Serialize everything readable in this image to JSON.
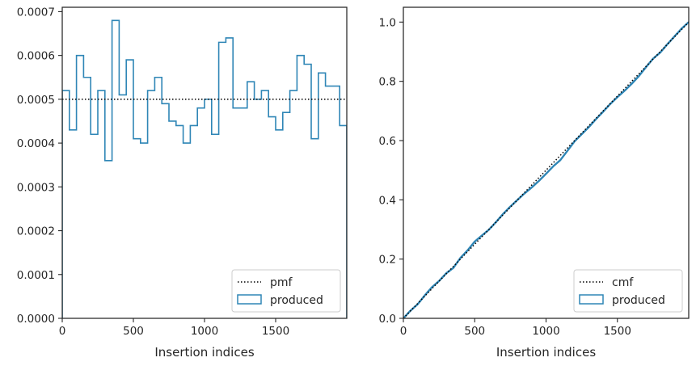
{
  "chart_data": [
    {
      "type": "histogram-step",
      "xlabel": "Insertion indices",
      "ylabel": "",
      "xlim": [
        0,
        2000
      ],
      "ylim": [
        0,
        0.00071
      ],
      "xticks": [
        0,
        500,
        1000,
        1500
      ],
      "xtick_labels": [
        "0",
        "500",
        "1000",
        "1500"
      ],
      "yticks": [
        0,
        0.0001,
        0.0002,
        0.0003,
        0.0004,
        0.0005,
        0.0006,
        0.0007
      ],
      "ytick_labels": [
        "0.0000",
        "0.0001",
        "0.0002",
        "0.0003",
        "0.0004",
        "0.0005",
        "0.0006",
        "0.0007"
      ],
      "bin_edges": [
        0,
        50,
        100,
        150,
        200,
        250,
        300,
        350,
        400,
        450,
        500,
        550,
        600,
        650,
        700,
        750,
        800,
        850,
        900,
        950,
        1000,
        1050,
        1100,
        1150,
        1200,
        1250,
        1300,
        1350,
        1400,
        1450,
        1500,
        1550,
        1600,
        1650,
        1700,
        1750,
        1800,
        1850,
        1900,
        1950,
        2000
      ],
      "series": [
        {
          "name": "pmf",
          "style": "dotted",
          "color": "#000000",
          "x": [
            0,
            2000
          ],
          "y": [
            0.0005,
            0.0005
          ]
        },
        {
          "name": "produced",
          "style": "step",
          "color": "#2f86b6",
          "values": [
            0.00052,
            0.00043,
            0.0006,
            0.00055,
            0.00042,
            0.00052,
            0.00036,
            0.00068,
            0.00051,
            0.00059,
            0.00041,
            0.0004,
            0.00052,
            0.00055,
            0.00049,
            0.00045,
            0.00044,
            0.0004,
            0.00044,
            0.00048,
            0.0005,
            0.00042,
            0.00063,
            0.00064,
            0.00048,
            0.00048,
            0.00054,
            0.0005,
            0.00052,
            0.00046,
            0.00043,
            0.00047,
            0.00052,
            0.0006,
            0.00058,
            0.00041,
            0.00056,
            0.00053,
            0.00053,
            0.00044
          ]
        }
      ],
      "legend": {
        "position": "lower right",
        "entries": [
          "pmf",
          "produced"
        ]
      }
    },
    {
      "type": "line",
      "xlabel": "Insertion indices",
      "ylabel": "",
      "xlim": [
        0,
        2000
      ],
      "ylim": [
        0,
        1.05
      ],
      "xticks": [
        0,
        500,
        1000,
        1500
      ],
      "xtick_labels": [
        "0",
        "500",
        "1000",
        "1500"
      ],
      "yticks": [
        0,
        0.2,
        0.4,
        0.6,
        0.8,
        1.0
      ],
      "ytick_labels": [
        "0.0",
        "0.2",
        "0.4",
        "0.6",
        "0.8",
        "1.0"
      ],
      "series": [
        {
          "name": "cmf",
          "style": "dotted",
          "color": "#000000",
          "x": [
            0,
            2000
          ],
          "y": [
            0,
            1.0
          ]
        },
        {
          "name": "produced",
          "style": "line",
          "color": "#2f86b6",
          "x": [
            0,
            50,
            100,
            150,
            200,
            250,
            300,
            350,
            400,
            450,
            500,
            550,
            600,
            650,
            700,
            750,
            800,
            850,
            900,
            950,
            1000,
            1050,
            1100,
            1150,
            1200,
            1250,
            1300,
            1350,
            1400,
            1450,
            1500,
            1550,
            1600,
            1650,
            1700,
            1750,
            1800,
            1850,
            1900,
            1950,
            2000
          ],
          "y": [
            0,
            0.026,
            0.0475,
            0.0775,
            0.105,
            0.126,
            0.152,
            0.17,
            0.204,
            0.2295,
            0.259,
            0.2795,
            0.2995,
            0.3255,
            0.353,
            0.3775,
            0.4,
            0.422,
            0.442,
            0.464,
            0.488,
            0.513,
            0.534,
            0.5655,
            0.5975,
            0.6215,
            0.6455,
            0.6725,
            0.6975,
            0.7235,
            0.7465,
            0.768,
            0.7915,
            0.8175,
            0.8475,
            0.8765,
            0.897,
            0.925,
            0.9515,
            0.978,
            1.0
          ]
        }
      ],
      "legend": {
        "position": "lower right",
        "entries": [
          "cmf",
          "produced"
        ]
      }
    }
  ]
}
